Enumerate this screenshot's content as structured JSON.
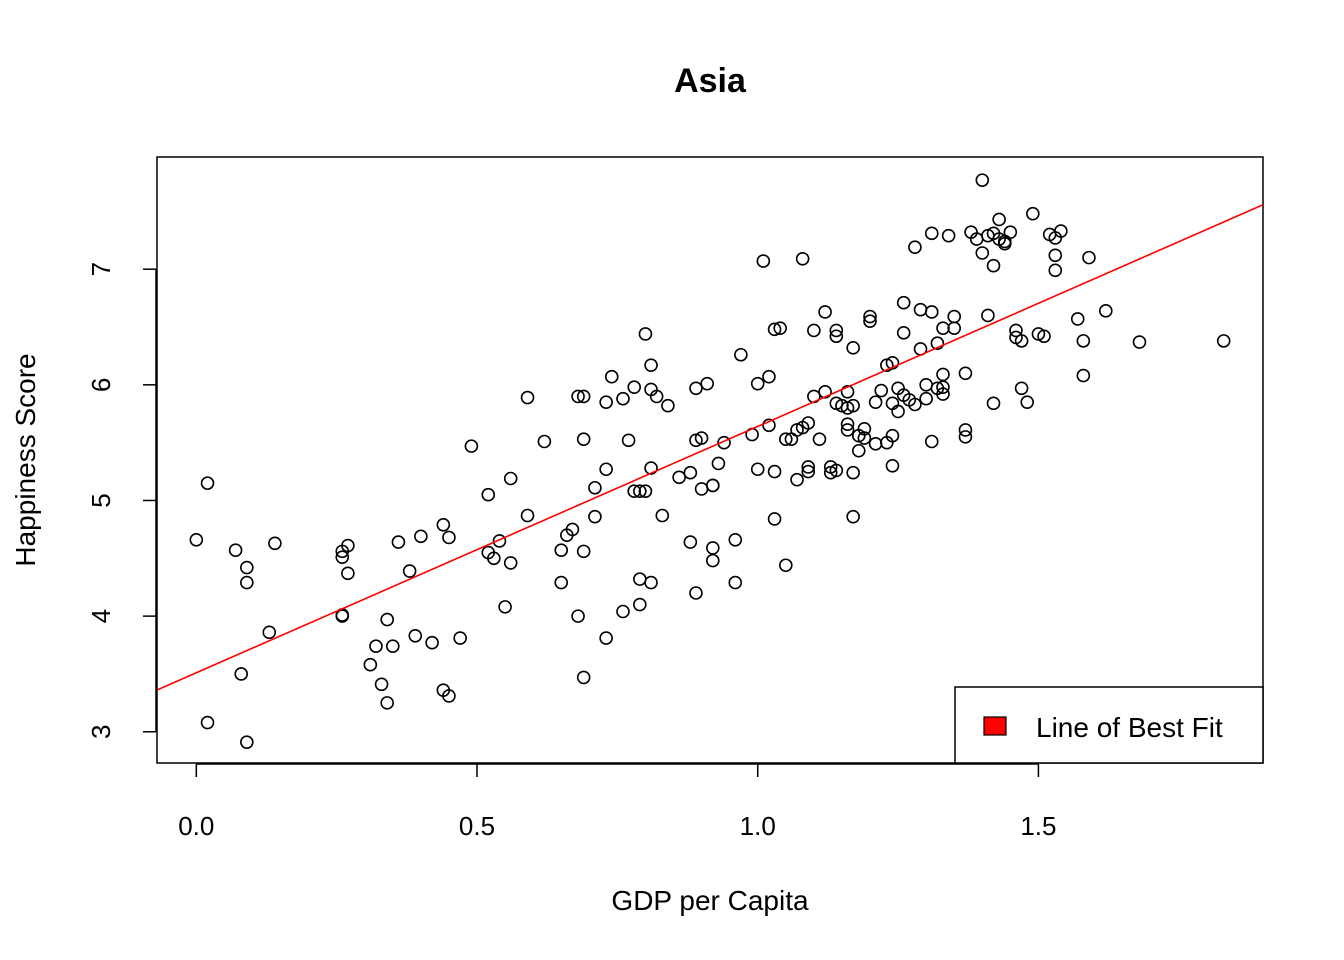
{
  "chart_data": {
    "type": "scatter",
    "title": "Asia",
    "xlabel": "GDP per Capita",
    "ylabel": "Happiness Score",
    "xlim": [
      -0.07,
      1.9
    ],
    "ylim": [
      2.73,
      7.97
    ],
    "xticks": [
      0.0,
      0.5,
      1.0,
      1.5
    ],
    "xtick_labels": [
      "0.0",
      "0.5",
      "1.0",
      "1.5"
    ],
    "yticks": [
      3,
      4,
      5,
      6,
      7
    ],
    "ytick_labels": [
      "3",
      "4",
      "5",
      "6",
      "7"
    ],
    "grid": false,
    "legend": {
      "position": "bottom-right",
      "entries": [
        {
          "label": "Line of Best Fit",
          "color": "#ff0000"
        }
      ]
    },
    "fit_line": {
      "intercept": 3.51,
      "slope": 2.13,
      "color": "#ff0000"
    },
    "points": [
      [
        0.0,
        4.66
      ],
      [
        0.02,
        3.08
      ],
      [
        0.02,
        5.15
      ],
      [
        0.07,
        4.57
      ],
      [
        0.08,
        3.5
      ],
      [
        0.09,
        2.91
      ],
      [
        0.09,
        4.42
      ],
      [
        0.09,
        4.29
      ],
      [
        0.13,
        3.86
      ],
      [
        0.14,
        4.63
      ],
      [
        0.26,
        4.56
      ],
      [
        0.26,
        4.01
      ],
      [
        0.26,
        4.0
      ],
      [
        0.26,
        4.51
      ],
      [
        0.27,
        4.61
      ],
      [
        0.27,
        4.37
      ],
      [
        0.31,
        3.58
      ],
      [
        0.32,
        3.74
      ],
      [
        0.33,
        3.41
      ],
      [
        0.34,
        3.25
      ],
      [
        0.34,
        3.97
      ],
      [
        0.35,
        3.74
      ],
      [
        0.36,
        4.64
      ],
      [
        0.38,
        4.39
      ],
      [
        0.39,
        3.83
      ],
      [
        0.4,
        4.69
      ],
      [
        0.42,
        3.77
      ],
      [
        0.44,
        3.36
      ],
      [
        0.44,
        4.79
      ],
      [
        0.45,
        4.68
      ],
      [
        0.45,
        3.31
      ],
      [
        0.47,
        3.81
      ],
      [
        0.49,
        5.47
      ],
      [
        0.52,
        5.05
      ],
      [
        0.52,
        4.55
      ],
      [
        0.53,
        4.5
      ],
      [
        0.54,
        4.65
      ],
      [
        0.55,
        4.08
      ],
      [
        0.56,
        5.19
      ],
      [
        0.56,
        4.46
      ],
      [
        0.59,
        4.87
      ],
      [
        0.59,
        5.89
      ],
      [
        0.62,
        5.51
      ],
      [
        0.65,
        4.57
      ],
      [
        0.65,
        4.29
      ],
      [
        0.66,
        4.7
      ],
      [
        0.67,
        4.75
      ],
      [
        0.68,
        4.0
      ],
      [
        0.68,
        5.9
      ],
      [
        0.69,
        5.9
      ],
      [
        0.69,
        4.56
      ],
      [
        0.69,
        5.53
      ],
      [
        0.69,
        3.47
      ],
      [
        0.71,
        5.11
      ],
      [
        0.71,
        4.86
      ],
      [
        0.73,
        5.27
      ],
      [
        0.73,
        5.85
      ],
      [
        0.73,
        3.81
      ],
      [
        0.74,
        6.07
      ],
      [
        0.76,
        4.04
      ],
      [
        0.76,
        5.88
      ],
      [
        0.77,
        5.52
      ],
      [
        0.78,
        5.08
      ],
      [
        0.78,
        5.98
      ],
      [
        0.79,
        5.08
      ],
      [
        0.79,
        4.32
      ],
      [
        0.79,
        4.1
      ],
      [
        0.8,
        5.08
      ],
      [
        0.8,
        6.44
      ],
      [
        0.81,
        6.17
      ],
      [
        0.81,
        5.96
      ],
      [
        0.81,
        4.29
      ],
      [
        0.81,
        5.28
      ],
      [
        0.82,
        5.9
      ],
      [
        0.83,
        4.87
      ],
      [
        0.84,
        5.82
      ],
      [
        0.86,
        5.2
      ],
      [
        0.88,
        5.24
      ],
      [
        0.88,
        4.64
      ],
      [
        0.89,
        4.2
      ],
      [
        0.89,
        5.97
      ],
      [
        0.89,
        5.52
      ],
      [
        0.9,
        5.54
      ],
      [
        0.9,
        5.1
      ],
      [
        0.91,
        6.01
      ],
      [
        0.92,
        5.13
      ],
      [
        0.92,
        5.13
      ],
      [
        0.92,
        4.59
      ],
      [
        0.92,
        4.48
      ],
      [
        0.93,
        5.32
      ],
      [
        0.94,
        5.5
      ],
      [
        0.96,
        4.29
      ],
      [
        0.96,
        4.66
      ],
      [
        0.97,
        6.26
      ],
      [
        0.99,
        5.57
      ],
      [
        1.0,
        5.27
      ],
      [
        1.0,
        6.01
      ],
      [
        1.01,
        7.07
      ],
      [
        1.02,
        6.07
      ],
      [
        1.02,
        5.65
      ],
      [
        1.03,
        4.84
      ],
      [
        1.03,
        5.25
      ],
      [
        1.03,
        6.48
      ],
      [
        1.04,
        6.49
      ],
      [
        1.05,
        5.53
      ],
      [
        1.05,
        4.44
      ],
      [
        1.06,
        5.53
      ],
      [
        1.07,
        5.18
      ],
      [
        1.07,
        5.61
      ],
      [
        1.08,
        7.09
      ],
      [
        1.08,
        5.63
      ],
      [
        1.09,
        5.67
      ],
      [
        1.09,
        5.25
      ],
      [
        1.09,
        5.29
      ],
      [
        1.1,
        6.47
      ],
      [
        1.1,
        5.9
      ],
      [
        1.11,
        5.53
      ],
      [
        1.12,
        6.63
      ],
      [
        1.12,
        5.94
      ],
      [
        1.13,
        5.24
      ],
      [
        1.13,
        5.29
      ],
      [
        1.14,
        6.42
      ],
      [
        1.14,
        6.47
      ],
      [
        1.14,
        5.84
      ],
      [
        1.14,
        5.26
      ],
      [
        1.15,
        5.82
      ],
      [
        1.16,
        5.8
      ],
      [
        1.16,
        5.61
      ],
      [
        1.16,
        5.66
      ],
      [
        1.16,
        5.94
      ],
      [
        1.17,
        6.32
      ],
      [
        1.17,
        5.82
      ],
      [
        1.17,
        5.24
      ],
      [
        1.17,
        4.86
      ],
      [
        1.18,
        5.43
      ],
      [
        1.18,
        5.56
      ],
      [
        1.19,
        5.62
      ],
      [
        1.19,
        5.54
      ],
      [
        1.2,
        6.55
      ],
      [
        1.2,
        6.59
      ],
      [
        1.21,
        5.85
      ],
      [
        1.21,
        5.49
      ],
      [
        1.22,
        5.95
      ],
      [
        1.23,
        5.5
      ],
      [
        1.23,
        6.17
      ],
      [
        1.24,
        6.19
      ],
      [
        1.24,
        5.56
      ],
      [
        1.24,
        5.84
      ],
      [
        1.24,
        5.3
      ],
      [
        1.25,
        5.97
      ],
      [
        1.25,
        5.77
      ],
      [
        1.26,
        5.91
      ],
      [
        1.26,
        6.45
      ],
      [
        1.26,
        6.71
      ],
      [
        1.27,
        5.87
      ],
      [
        1.28,
        7.19
      ],
      [
        1.28,
        5.83
      ],
      [
        1.29,
        6.31
      ],
      [
        1.29,
        6.65
      ],
      [
        1.3,
        6.0
      ],
      [
        1.3,
        5.88
      ],
      [
        1.31,
        7.31
      ],
      [
        1.31,
        6.63
      ],
      [
        1.31,
        5.51
      ],
      [
        1.32,
        5.97
      ],
      [
        1.32,
        6.36
      ],
      [
        1.33,
        6.49
      ],
      [
        1.33,
        6.09
      ],
      [
        1.33,
        5.92
      ],
      [
        1.33,
        5.98
      ],
      [
        1.34,
        7.29
      ],
      [
        1.35,
        6.49
      ],
      [
        1.35,
        6.59
      ],
      [
        1.37,
        5.55
      ],
      [
        1.37,
        5.61
      ],
      [
        1.37,
        6.1
      ],
      [
        1.38,
        7.32
      ],
      [
        1.39,
        7.26
      ],
      [
        1.4,
        7.77
      ],
      [
        1.4,
        7.14
      ],
      [
        1.41,
        7.29
      ],
      [
        1.41,
        6.6
      ],
      [
        1.42,
        7.31
      ],
      [
        1.42,
        7.03
      ],
      [
        1.42,
        5.84
      ],
      [
        1.43,
        7.43
      ],
      [
        1.43,
        7.26
      ],
      [
        1.44,
        7.22
      ],
      [
        1.44,
        7.24
      ],
      [
        1.45,
        7.32
      ],
      [
        1.46,
        6.41
      ],
      [
        1.46,
        6.47
      ],
      [
        1.47,
        6.38
      ],
      [
        1.47,
        5.97
      ],
      [
        1.48,
        5.85
      ],
      [
        1.49,
        7.48
      ],
      [
        1.5,
        6.44
      ],
      [
        1.51,
        6.42
      ],
      [
        1.52,
        7.3
      ],
      [
        1.53,
        7.27
      ],
      [
        1.53,
        6.99
      ],
      [
        1.53,
        7.12
      ],
      [
        1.54,
        7.33
      ],
      [
        1.58,
        6.38
      ],
      [
        1.58,
        6.08
      ],
      [
        1.59,
        7.1
      ],
      [
        1.57,
        6.57
      ],
      [
        1.62,
        6.64
      ],
      [
        1.68,
        6.37
      ],
      [
        1.83,
        6.38
      ]
    ]
  }
}
